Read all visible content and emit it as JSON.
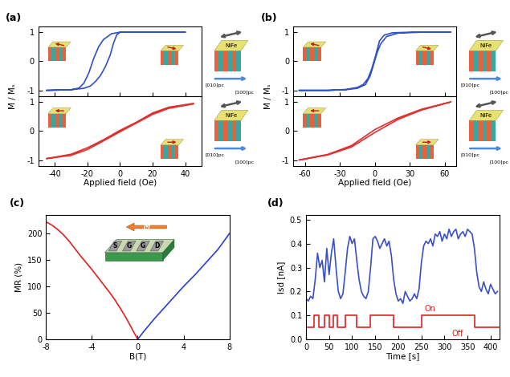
{
  "chart_data": [
    {
      "type": "line",
      "title": "(a)",
      "y_label": "M / Mₛ",
      "tick_labels": "y",
      "xlim": [
        -50,
        50
      ],
      "xticks": [
        -40,
        -20,
        0,
        20,
        40
      ],
      "ylim": [
        -1.2,
        1.2
      ],
      "yticks": [
        -1,
        0,
        1
      ],
      "annotations": [
        "NiFe",
        "[010]pc",
        "[100]pc"
      ],
      "series": [
        {
          "color": "#3050c8",
          "x": [
            40,
            20,
            5,
            0,
            -5,
            -10,
            -13,
            -16,
            -19,
            -22,
            -25,
            -30,
            -45,
            -30,
            -22,
            -18,
            -15,
            -12,
            -9,
            -6,
            -4,
            -2,
            0,
            5,
            20,
            40
          ],
          "values": [
            1.0,
            1.0,
            1.0,
            1.0,
            0.95,
            0.75,
            0.5,
            0.1,
            -0.4,
            -0.75,
            -0.92,
            -0.98,
            -1.0,
            -0.98,
            -0.93,
            -0.85,
            -0.7,
            -0.5,
            -0.2,
            0.2,
            0.6,
            0.9,
            1.0,
            1.0,
            1.0,
            1.0
          ]
        }
      ]
    },
    {
      "type": "line",
      "x_label": "Applied field (Oe)",
      "xlim": [
        -50,
        50
      ],
      "xticks": [
        -40,
        -20,
        0,
        20,
        40
      ],
      "ylim": [
        -1.2,
        1.2
      ],
      "yticks": [
        -1,
        0,
        1
      ],
      "annotations": [
        "NiFe",
        "[010]pc",
        "[100]pc"
      ],
      "series": [
        {
          "color": "#e03030",
          "x": [
            45,
            30,
            20,
            10,
            0,
            -10,
            -20,
            -30,
            -45,
            -30,
            -20,
            -10,
            0,
            10,
            20,
            30,
            45
          ],
          "values": [
            0.95,
            0.82,
            0.62,
            0.3,
            0.02,
            -0.3,
            -0.58,
            -0.8,
            -0.95,
            -0.84,
            -0.64,
            -0.34,
            -0.03,
            0.27,
            0.57,
            0.78,
            0.93
          ]
        }
      ]
    },
    {
      "type": "line",
      "title": "(b)",
      "y_label": "M / Mₛ",
      "tick_labels": "y",
      "xlim": [
        -70,
        70
      ],
      "xticks": [
        -60,
        -30,
        0,
        30,
        60
      ],
      "ylim": [
        -1.2,
        1.2
      ],
      "yticks": [
        -1,
        0,
        1
      ],
      "annotations": [
        "NiFe",
        "[010]pc",
        "[100]pc"
      ],
      "series": [
        {
          "color": "#3050c8",
          "x": [
            65,
            40,
            30,
            15,
            8,
            4,
            2,
            0,
            -3,
            -6,
            -10,
            -15,
            -25,
            -40,
            -65,
            -40,
            -25,
            -15,
            -8,
            -4,
            -1,
            2,
            5,
            10,
            20,
            40,
            65
          ],
          "values": [
            1.0,
            1.0,
            1.0,
            0.98,
            0.9,
            0.7,
            0.4,
            0.1,
            -0.3,
            -0.6,
            -0.8,
            -0.9,
            -0.97,
            -1.0,
            -1.0,
            -1.0,
            -0.98,
            -0.93,
            -0.8,
            -0.5,
            -0.1,
            0.3,
            0.6,
            0.85,
            0.97,
            1.0,
            1.0
          ]
        }
      ]
    },
    {
      "type": "line",
      "x_label": "Applied field (Oe)",
      "xlim": [
        -70,
        70
      ],
      "xticks": [
        -60,
        -30,
        0,
        30,
        60
      ],
      "ylim": [
        -1.2,
        1.2
      ],
      "yticks": [
        -1,
        0,
        1
      ],
      "annotations": [
        "NiFe",
        "[010]pc",
        "[100]pc"
      ],
      "series": [
        {
          "color": "#e03030",
          "x": [
            65,
            40,
            20,
            0,
            -20,
            -40,
            -65,
            -40,
            -20,
            0,
            20,
            40,
            65
          ],
          "values": [
            1.0,
            0.75,
            0.45,
            0.05,
            -0.5,
            -0.8,
            -1.0,
            -0.82,
            -0.55,
            -0.05,
            0.4,
            0.72,
            1.0
          ]
        }
      ]
    },
    {
      "type": "line",
      "title": "(c)",
      "x_label": "B(T)",
      "y_label": "MR (%)",
      "xlim": [
        -8,
        8
      ],
      "xticks": [
        -8,
        -4,
        0,
        4,
        8
      ],
      "ylim": [
        0,
        235
      ],
      "yticks": [
        0,
        50,
        100,
        150,
        200
      ],
      "annotations": [
        "S",
        "G",
        "G",
        "D",
        "M"
      ],
      "series": [
        {
          "color": "#e02020",
          "x": [
            -8,
            -7.5,
            -7,
            -6.5,
            -6,
            -5.5,
            -5,
            -4.5,
            -4,
            -3.5,
            -3,
            -2.5,
            -2,
            -1.5,
            -1,
            -0.5,
            0
          ],
          "values": [
            222,
            216,
            208,
            198,
            186,
            172,
            158,
            145,
            132,
            118,
            104,
            90,
            75,
            58,
            40,
            20,
            0
          ]
        },
        {
          "color": "#2a3fd0",
          "x": [
            0,
            0.5,
            1,
            1.5,
            2,
            2.5,
            3,
            3.5,
            4,
            4.5,
            5,
            5.5,
            6,
            6.5,
            7,
            7.5,
            8
          ],
          "values": [
            0,
            14,
            27,
            40,
            52,
            64,
            76,
            88,
            100,
            111,
            122,
            134,
            146,
            158,
            170,
            185,
            200
          ]
        }
      ]
    },
    {
      "type": "line",
      "title": "(d)",
      "x_label": "Time [s]",
      "y_label": "Isd [nA]",
      "xlim": [
        0,
        420
      ],
      "xticks": [
        0,
        50,
        100,
        150,
        200,
        250,
        300,
        350,
        400
      ],
      "ylim": [
        0,
        0.52
      ],
      "yticks": [
        0.0,
        0.1,
        0.2,
        0.3,
        0.4,
        0.5
      ],
      "annotations": [
        "On",
        "Off"
      ],
      "series": [
        {
          "color": "#3a50c8",
          "x": [
            0,
            5,
            10,
            15,
            20,
            25,
            30,
            35,
            40,
            45,
            50,
            55,
            60,
            65,
            70,
            75,
            80,
            85,
            90,
            95,
            100,
            105,
            110,
            115,
            120,
            125,
            130,
            135,
            140,
            145,
            150,
            155,
            160,
            165,
            170,
            175,
            180,
            185,
            190,
            195,
            200,
            205,
            210,
            215,
            220,
            225,
            230,
            235,
            240,
            245,
            250,
            255,
            260,
            265,
            270,
            275,
            280,
            285,
            290,
            295,
            300,
            305,
            310,
            315,
            320,
            325,
            330,
            335,
            340,
            345,
            350,
            355,
            360,
            365,
            370,
            375,
            380,
            385,
            390,
            395,
            400,
            405,
            410,
            415
          ],
          "values": [
            0.17,
            0.16,
            0.18,
            0.17,
            0.25,
            0.36,
            0.3,
            0.33,
            0.24,
            0.38,
            0.27,
            0.36,
            0.42,
            0.3,
            0.2,
            0.17,
            0.19,
            0.28,
            0.38,
            0.43,
            0.4,
            0.42,
            0.33,
            0.25,
            0.2,
            0.18,
            0.17,
            0.2,
            0.3,
            0.42,
            0.43,
            0.41,
            0.38,
            0.4,
            0.42,
            0.39,
            0.41,
            0.35,
            0.25,
            0.19,
            0.16,
            0.17,
            0.15,
            0.2,
            0.18,
            0.16,
            0.17,
            0.19,
            0.17,
            0.21,
            0.32,
            0.39,
            0.41,
            0.4,
            0.42,
            0.39,
            0.44,
            0.43,
            0.45,
            0.41,
            0.44,
            0.42,
            0.46,
            0.43,
            0.45,
            0.46,
            0.42,
            0.44,
            0.45,
            0.43,
            0.46,
            0.45,
            0.44,
            0.38,
            0.28,
            0.22,
            0.2,
            0.24,
            0.21,
            0.19,
            0.23,
            0.21,
            0.19,
            0.2
          ]
        },
        {
          "color": "#e02020",
          "x": [
            0,
            18,
            18,
            28,
            28,
            40,
            40,
            50,
            50,
            60,
            60,
            68,
            68,
            85,
            85,
            110,
            110,
            140,
            140,
            190,
            190,
            250,
            250,
            365,
            365,
            420
          ],
          "values": [
            0.05,
            0.05,
            0.1,
            0.1,
            0.05,
            0.05,
            0.1,
            0.1,
            0.05,
            0.05,
            0.1,
            0.1,
            0.05,
            0.05,
            0.1,
            0.1,
            0.05,
            0.05,
            0.1,
            0.1,
            0.05,
            0.05,
            0.1,
            0.1,
            0.05,
            0.05
          ]
        }
      ]
    }
  ]
}
